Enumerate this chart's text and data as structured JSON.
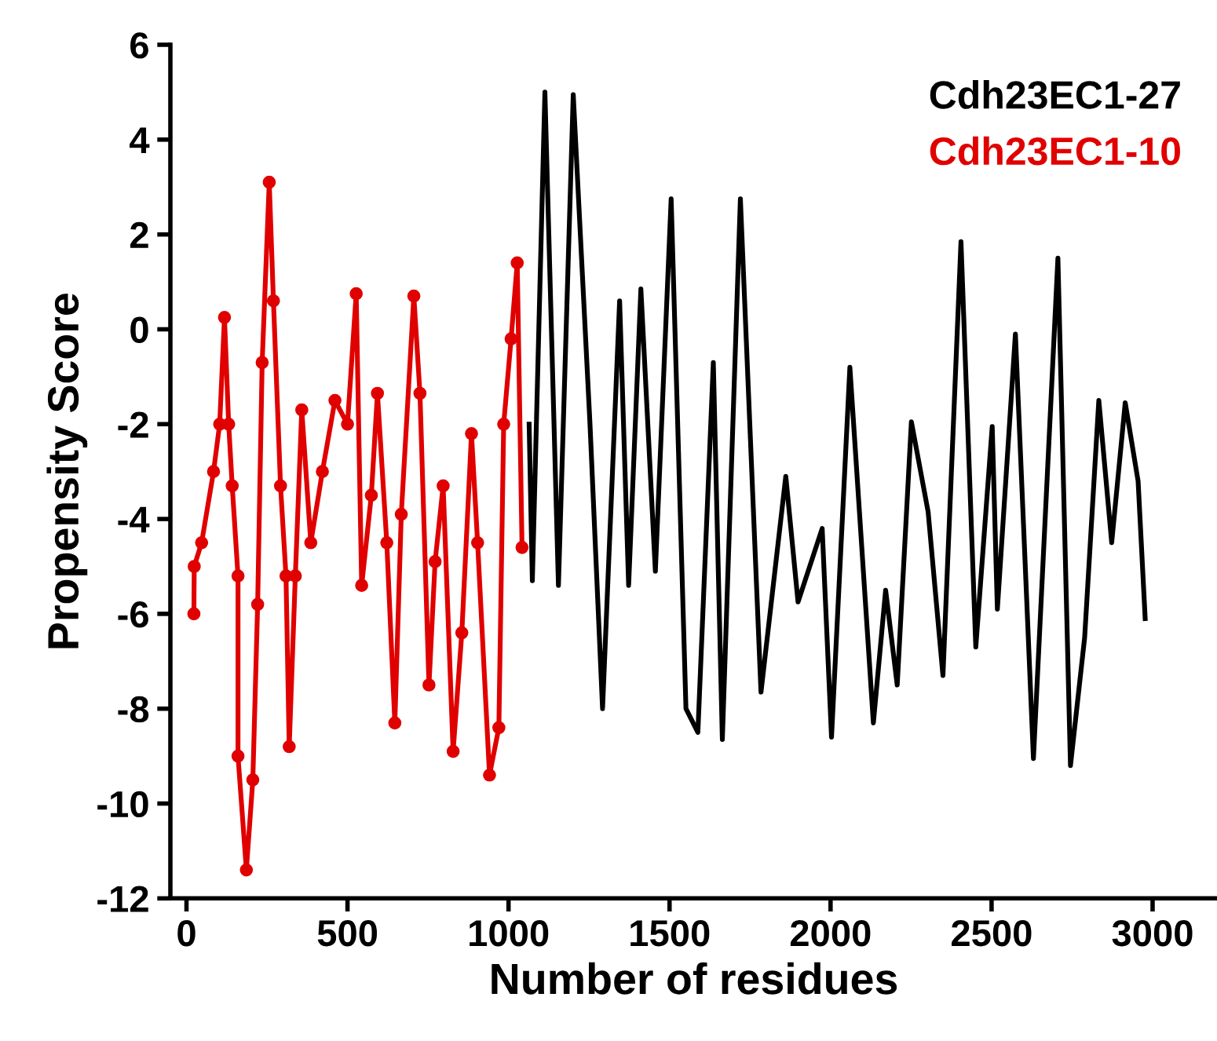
{
  "chart_data": {
    "type": "line",
    "xlabel": "Number of residues",
    "ylabel": "Propensity Score",
    "xlim": [
      -50,
      3200
    ],
    "xticks": [
      0,
      500,
      1000,
      1500,
      2000,
      2500,
      3000
    ],
    "ylim": [
      -12,
      6
    ],
    "yticks": [
      -12,
      -10,
      -8,
      -6,
      -4,
      -2,
      0,
      2,
      4,
      6
    ],
    "grid": false,
    "legend": "top right",
    "series": [
      {
        "name": "Cdh23EC1-27",
        "color": "#000000",
        "marker": "none",
        "x": [
          1064,
          1074,
          1113,
          1155,
          1201,
          1253,
          1292,
          1345,
          1373,
          1411,
          1456,
          1505,
          1551,
          1588,
          1636,
          1664,
          1720,
          1784,
          1861,
          1899,
          1974,
          2003,
          2060,
          2133,
          2171,
          2207,
          2251,
          2303,
          2349,
          2405,
          2451,
          2502,
          2518,
          2574,
          2630,
          2706,
          2745,
          2789,
          2833,
          2873,
          2915,
          2955,
          2977
        ],
        "values": [
          -2.0,
          -5.3,
          5.0,
          -5.4,
          4.95,
          -2.0,
          -8.0,
          0.6,
          -5.4,
          0.85,
          -5.1,
          2.75,
          -8.0,
          -8.5,
          -0.7,
          -8.65,
          2.75,
          -7.65,
          -3.1,
          -5.75,
          -4.2,
          -8.6,
          -0.8,
          -8.3,
          -5.5,
          -7.5,
          -1.95,
          -3.85,
          -7.3,
          1.85,
          -6.7,
          -2.05,
          -5.9,
          -0.1,
          -9.05,
          1.5,
          -9.2,
          -6.5,
          -1.5,
          -4.5,
          -1.55,
          -3.2,
          -6.1
        ]
      },
      {
        "name": "Cdh23EC1-10",
        "color": "#e00000",
        "marker": "circle",
        "x": [
          23,
          24,
          47,
          84,
          103,
          118,
          131,
          142,
          160,
          160,
          186,
          206,
          221,
          235,
          257,
          270,
          292,
          309,
          319,
          338,
          358,
          386,
          422,
          461,
          500,
          527,
          544,
          574,
          593,
          622,
          647,
          667,
          706,
          725,
          753,
          772,
          797,
          828,
          855,
          885,
          904,
          941,
          970,
          985,
          1008,
          1027,
          1042
        ],
        "values": [
          -6.0,
          -5.0,
          -4.5,
          -3.0,
          -2.0,
          0.25,
          -2.0,
          -3.3,
          -5.2,
          -9.0,
          -11.4,
          -9.5,
          -5.8,
          -0.7,
          3.1,
          0.6,
          -3.3,
          -5.2,
          -8.8,
          -5.2,
          -1.7,
          -4.5,
          -3.0,
          -1.5,
          -2.0,
          0.75,
          -5.4,
          -3.5,
          -1.35,
          -4.5,
          -8.3,
          -3.9,
          0.7,
          -1.35,
          -7.5,
          -4.9,
          -3.3,
          -8.9,
          -6.4,
          -2.2,
          -4.5,
          -9.4,
          -8.4,
          -2.0,
          -0.2,
          1.4,
          -4.6
        ]
      }
    ]
  }
}
